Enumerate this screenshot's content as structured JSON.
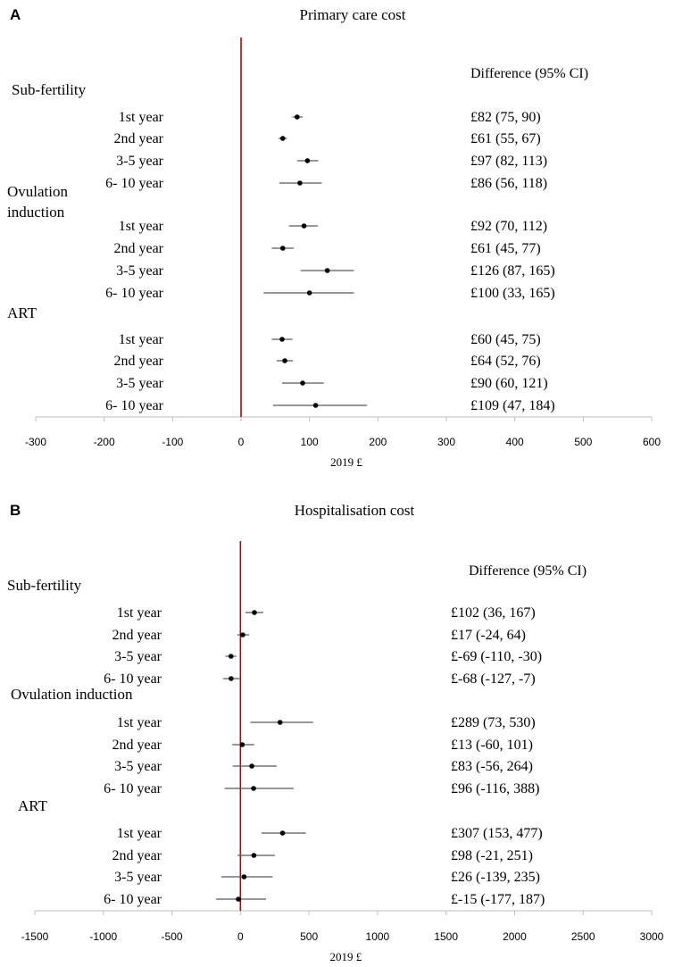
{
  "chart_data": [
    {
      "type": "forest",
      "panel": "A",
      "title": "Primary care cost",
      "xlabel": "2019 £",
      "xlim": [
        -300,
        600
      ],
      "xticks": [
        "-300",
        "-200",
        "-100",
        "0",
        "100",
        "200",
        "300",
        "400",
        "500",
        "600"
      ],
      "reference_line": 0,
      "reference_color": "#c00000",
      "point_color": "#000000",
      "ci_color": "#595959",
      "column_header": "Difference (95% CI)",
      "groups": [
        {
          "label_lines": [
            "Sub-fertility"
          ],
          "rows": [
            {
              "label": "1st year",
              "est": 82,
              "lo": 75,
              "hi": 90,
              "text": "£82 (75, 90)"
            },
            {
              "label": "2nd year",
              "est": 61,
              "lo": 55,
              "hi": 67,
              "text": "£61 (55, 67)"
            },
            {
              "label": "3-5 year",
              "est": 97,
              "lo": 82,
              "hi": 113,
              "text": "£97 (82, 113)"
            },
            {
              "label": "6- 10 year",
              "est": 86,
              "lo": 56,
              "hi": 118,
              "text": "£86 (56, 118)"
            }
          ]
        },
        {
          "label_lines": [
            "Ovulation",
            "induction"
          ],
          "rows": [
            {
              "label": "1st year",
              "est": 92,
              "lo": 70,
              "hi": 112,
              "text": "£92 (70, 112)"
            },
            {
              "label": "2nd year",
              "est": 61,
              "lo": 45,
              "hi": 77,
              "text": "£61 (45, 77)"
            },
            {
              "label": "3-5 year",
              "est": 126,
              "lo": 87,
              "hi": 165,
              "text": "£126 (87, 165)"
            },
            {
              "label": "6- 10 year",
              "est": 100,
              "lo": 33,
              "hi": 165,
              "text": "£100 (33, 165)"
            }
          ]
        },
        {
          "label_lines": [
            "ART"
          ],
          "rows": [
            {
              "label": "1st year",
              "est": 60,
              "lo": 45,
              "hi": 75,
              "text": "£60 (45, 75)"
            },
            {
              "label": "2nd year",
              "est": 64,
              "lo": 52,
              "hi": 76,
              "text": "£64 (52, 76)"
            },
            {
              "label": "3-5 year",
              "est": 90,
              "lo": 60,
              "hi": 121,
              "text": "£90 (60, 121)"
            },
            {
              "label": "6- 10 year",
              "est": 109,
              "lo": 47,
              "hi": 184,
              "text": "£109 (47, 184)"
            }
          ]
        }
      ]
    },
    {
      "type": "forest",
      "panel": "B",
      "title": "Hospitalisation cost",
      "xlabel": "2019 £",
      "xlim": [
        -1500,
        3000
      ],
      "xticks": [
        "-1500",
        "-1000",
        "-500",
        "0",
        "500",
        "1000",
        "1500",
        "2000",
        "2500",
        "3000"
      ],
      "reference_line": 0,
      "reference_color": "#c00000",
      "point_color": "#000000",
      "ci_color": "#595959",
      "column_header": "Difference (95% CI)",
      "groups": [
        {
          "label_lines": [
            "Sub-fertility"
          ],
          "rows": [
            {
              "label": "1st year",
              "est": 102,
              "lo": 36,
              "hi": 167,
              "text": "£102 (36, 167)"
            },
            {
              "label": "2nd year",
              "est": 17,
              "lo": -24,
              "hi": 64,
              "text": "£17 (-24, 64)"
            },
            {
              "label": "3-5 year",
              "est": -69,
              "lo": -110,
              "hi": -30,
              "text": "£-69 (-110, -30)"
            },
            {
              "label": "6- 10 year",
              "est": -68,
              "lo": -127,
              "hi": -7,
              "text": "£-68 (-127, -7)"
            }
          ]
        },
        {
          "label_lines": [
            "Ovulation induction"
          ],
          "rows": [
            {
              "label": "1st year",
              "est": 289,
              "lo": 73,
              "hi": 530,
              "text": "£289 (73, 530)"
            },
            {
              "label": "2nd year",
              "est": 13,
              "lo": -60,
              "hi": 101,
              "text": "£13 (-60, 101)"
            },
            {
              "label": "3-5 year",
              "est": 83,
              "lo": -56,
              "hi": 264,
              "text": "£83 (-56, 264)"
            },
            {
              "label": "6- 10 year",
              "est": 96,
              "lo": -116,
              "hi": 388,
              "text": "£96 (-116, 388)"
            }
          ]
        },
        {
          "label_lines": [
            "ART"
          ],
          "rows": [
            {
              "label": "1st year",
              "est": 307,
              "lo": 153,
              "hi": 477,
              "text": "£307 (153, 477)"
            },
            {
              "label": "2nd year",
              "est": 98,
              "lo": -21,
              "hi": 251,
              "text": "£98 (-21, 251)"
            },
            {
              "label": "3-5 year",
              "est": 26,
              "lo": -139,
              "hi": 235,
              "text": "£26 (-139, 235)"
            },
            {
              "label": "6- 10 year",
              "est": -15,
              "lo": -177,
              "hi": 187,
              "text": "£-15 (-177, 187)"
            }
          ]
        }
      ]
    }
  ]
}
